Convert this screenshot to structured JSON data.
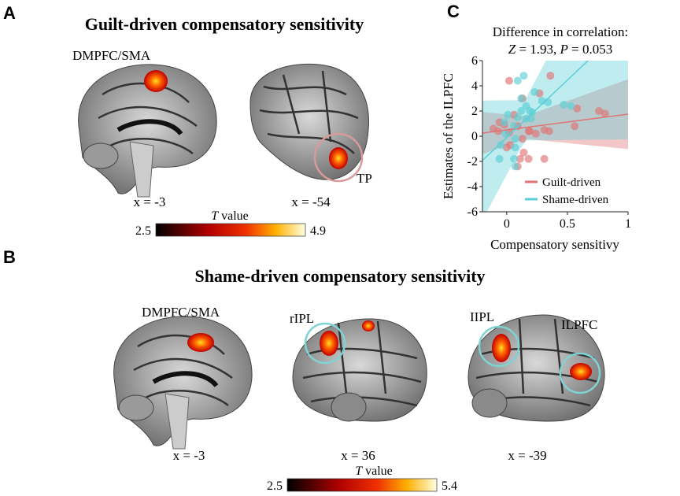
{
  "panels": {
    "A": {
      "letter": "A",
      "title": "Guilt-driven compensatory sensitivity",
      "region_labels": [
        "DMPFC/SMA",
        "TP"
      ],
      "slices": [
        "x = -3",
        "x = -54"
      ],
      "colorbar": {
        "label_italic": "T",
        "label_rest": " value",
        "min": "2.5",
        "max": "4.9"
      }
    },
    "B": {
      "letter": "B",
      "title": "Shame-driven compensatory sensitivity",
      "region_labels": [
        "DMPFC/SMA",
        "rIPL",
        "IIPL",
        "ILPFC"
      ],
      "slices": [
        "x = -3",
        "x = 36",
        "x = -39"
      ],
      "colorbar": {
        "label_italic": "T",
        "label_rest": " value",
        "min": "2.5",
        "max": "5.4"
      }
    },
    "C": {
      "letter": "C"
    }
  },
  "colors": {
    "guilt": "#e07373",
    "shame": "#5ccfd6",
    "guilt_circle": "#d99a9a",
    "shame_circle": "#7fd3d3"
  },
  "chart_data": {
    "type": "scatter",
    "title": "Difference in correlation:",
    "subtitle": {
      "z_label": "Z",
      "z_value": " = 1.93, ",
      "p_label": "P",
      "p_value": " = 0.053"
    },
    "xlabel": "Compensatory sensitivy",
    "ylabel": "Estimates of the ILPFC",
    "xlim": [
      -0.2,
      1
    ],
    "ylim": [
      -6,
      6
    ],
    "xticks": [
      "0",
      "0.5",
      "1"
    ],
    "yticks": [
      "-6",
      "-4",
      "-2",
      "0",
      "2",
      "4",
      "6"
    ],
    "legend": "bottom-right",
    "series": [
      {
        "name": "Guilt-driven",
        "color": "#e07373",
        "fit": {
          "intercept": 0.5,
          "slope": 1.25
        },
        "points": [
          [
            0.02,
            4.4
          ],
          [
            0.13,
            3.0
          ],
          [
            0.27,
            3.4
          ],
          [
            0.36,
            4.8
          ],
          [
            0.06,
            1.7
          ],
          [
            -0.06,
            1.1
          ],
          [
            -0.02,
            0.9
          ],
          [
            -0.11,
            0.6
          ],
          [
            -0.07,
            0.4
          ],
          [
            0.02,
            0.3
          ],
          [
            0.09,
            0.8
          ],
          [
            0.19,
            0.4
          ],
          [
            0.24,
            0.2
          ],
          [
            0.31,
            0.5
          ],
          [
            0.35,
            0.4
          ],
          [
            0.0,
            -0.9
          ],
          [
            0.03,
            -0.7
          ],
          [
            0.13,
            -0.2
          ],
          [
            0.14,
            -1.3
          ],
          [
            0.11,
            -1.8
          ],
          [
            0.18,
            -1.8
          ],
          [
            0.31,
            -1.8
          ],
          [
            0.09,
            -2.4
          ],
          [
            0.58,
            2.2
          ],
          [
            0.56,
            0.8
          ],
          [
            0.76,
            2.0
          ],
          [
            0.81,
            1.8
          ],
          [
            0.18,
            0.4
          ]
        ]
      },
      {
        "name": "Shame-driven",
        "color": "#5ccfd6",
        "fit": {
          "intercept": -0.1,
          "slope": 9.1
        },
        "points": [
          [
            0.14,
            4.8
          ],
          [
            0.09,
            4.4
          ],
          [
            0.12,
            3.0
          ],
          [
            0.23,
            3.5
          ],
          [
            0.29,
            2.8
          ],
          [
            0.34,
            2.7
          ],
          [
            0.47,
            2.5
          ],
          [
            0.53,
            2.4
          ],
          [
            0.16,
            2.4
          ],
          [
            0.19,
            2.0
          ],
          [
            0.21,
            1.9
          ],
          [
            0.12,
            2.0
          ],
          [
            0.01,
            1.7
          ],
          [
            0.09,
            1.5
          ],
          [
            0.16,
            1.4
          ],
          [
            0.2,
            1.4
          ],
          [
            -0.02,
            1.1
          ],
          [
            0.06,
            0.8
          ],
          [
            -0.01,
            0.2
          ],
          [
            0.07,
            -0.2
          ],
          [
            -0.05,
            -0.7
          ],
          [
            0.07,
            -0.9
          ],
          [
            -0.06,
            -1.8
          ],
          [
            0.06,
            -1.8
          ],
          [
            0.07,
            -2.4
          ]
        ]
      }
    ]
  }
}
